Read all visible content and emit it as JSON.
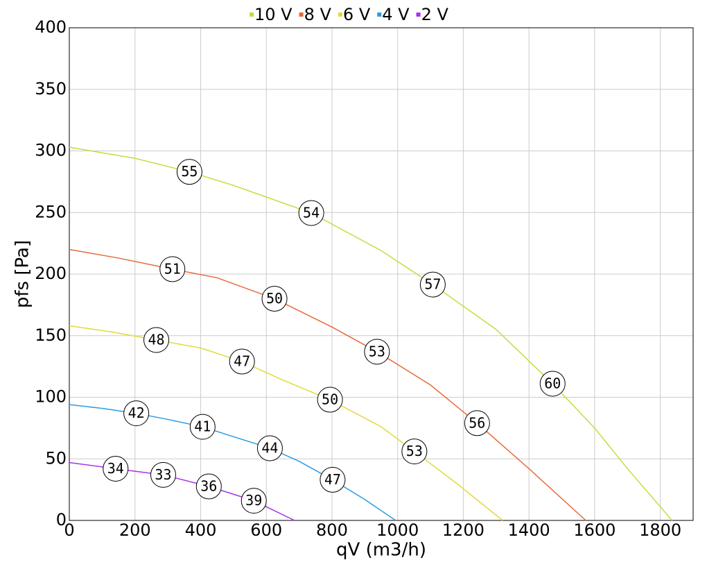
{
  "chart_data": {
    "type": "line",
    "xlabel": "qV (m3/h)",
    "ylabel": "pfs [Pa]",
    "xlim": [
      0,
      1900
    ],
    "xticks": [
      0,
      200,
      400,
      600,
      800,
      1000,
      1200,
      1400,
      1600,
      1800
    ],
    "ylim": [
      0,
      400
    ],
    "yticks": [
      0,
      50,
      100,
      150,
      200,
      250,
      300,
      350,
      400
    ],
    "grid": true,
    "legend": "top",
    "series": [
      {
        "name": "10 V",
        "color": "#c3dd3c",
        "x": [
          0,
          200,
          366,
          500,
          737,
          950,
          1107,
          1300,
          1472,
          1600,
          1700,
          1836
        ],
        "values": [
          303,
          294,
          283,
          272,
          249.6,
          219,
          191.5,
          155,
          111,
          75,
          42,
          0
        ],
        "points": [
          {
            "x": 366,
            "y": 283,
            "label": 55
          },
          {
            "x": 737,
            "y": 249.6,
            "label": 54
          },
          {
            "x": 1107,
            "y": 191.5,
            "label": 57
          },
          {
            "x": 1472,
            "y": 111,
            "label": 60
          }
        ]
      },
      {
        "name": "8 V",
        "color": "#e8683a",
        "x": [
          0,
          150,
          314,
          450,
          625,
          800,
          937,
          1100,
          1242,
          1400,
          1573
        ],
        "values": [
          220,
          213,
          204,
          197,
          180,
          157,
          137,
          110,
          79,
          42,
          0
        ],
        "points": [
          {
            "x": 314,
            "y": 204,
            "label": 51
          },
          {
            "x": 625,
            "y": 180,
            "label": 50
          },
          {
            "x": 937,
            "y": 137,
            "label": 53
          },
          {
            "x": 1242,
            "y": 79,
            "label": 56
          }
        ]
      },
      {
        "name": "6 V",
        "color": "#e3d93a",
        "x": [
          0,
          130,
          265,
          400,
          526,
          650,
          794,
          950,
          1051,
          1180,
          1320
        ],
        "values": [
          158,
          153,
          146.5,
          140,
          129,
          114,
          98,
          76,
          56,
          30,
          0
        ],
        "points": [
          {
            "x": 265,
            "y": 146.5,
            "label": 48
          },
          {
            "x": 526,
            "y": 129,
            "label": 47
          },
          {
            "x": 794,
            "y": 98,
            "label": 50
          },
          {
            "x": 1051,
            "y": 56,
            "label": 53
          }
        ]
      },
      {
        "name": "4 V",
        "color": "#2d9be0",
        "x": [
          0,
          100,
          204,
          300,
          406,
          500,
          611,
          700,
          802,
          900,
          994
        ],
        "values": [
          94,
          91,
          87,
          82,
          76,
          68,
          58.6,
          48,
          33,
          17,
          0
        ],
        "points": [
          {
            "x": 204,
            "y": 87,
            "label": 42
          },
          {
            "x": 406,
            "y": 76,
            "label": 41
          },
          {
            "x": 611,
            "y": 58.6,
            "label": 44
          },
          {
            "x": 802,
            "y": 33,
            "label": 47
          }
        ]
      },
      {
        "name": "2 V",
        "color": "#a833e8",
        "x": [
          0,
          141,
          286,
          425,
          562,
          686
        ],
        "values": [
          47,
          42,
          37,
          27.6,
          16,
          0
        ],
        "points": [
          {
            "x": 141,
            "y": 42,
            "label": 34
          },
          {
            "x": 286,
            "y": 37,
            "label": 33
          },
          {
            "x": 425,
            "y": 27.6,
            "label": 36
          },
          {
            "x": 562,
            "y": 16,
            "label": 39
          }
        ]
      }
    ]
  }
}
